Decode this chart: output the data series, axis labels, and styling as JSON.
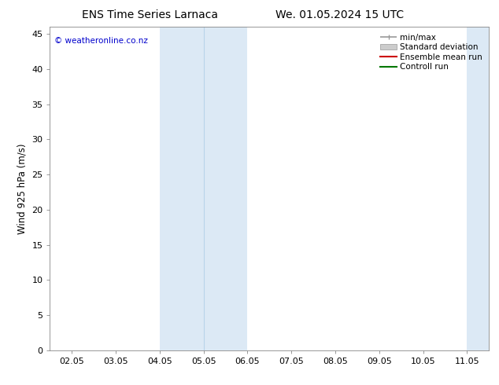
{
  "title_left": "ENS Time Series Larnaca",
  "title_right": "We. 01.05.2024 15 UTC",
  "ylabel": "Wind 925 hPa (m/s)",
  "watermark": "© weatheronline.co.nz",
  "background_color": "#ffffff",
  "plot_bg_color": "#ffffff",
  "ylim": [
    0,
    46
  ],
  "yticks": [
    0,
    5,
    10,
    15,
    20,
    25,
    30,
    35,
    40,
    45
  ],
  "xtick_labels": [
    "02.05",
    "03.05",
    "04.05",
    "05.05",
    "06.05",
    "07.05",
    "08.05",
    "09.05",
    "10.05",
    "11.05"
  ],
  "x_values": [
    0,
    1,
    2,
    3,
    4,
    5,
    6,
    7,
    8,
    9
  ],
  "xlim": [
    -0.5,
    9.5
  ],
  "shaded_regions": [
    {
      "x_start": 2.0,
      "x_end": 4.0,
      "color": "#dce9f5"
    },
    {
      "x_start": 9.0,
      "x_end": 9.5,
      "color": "#dce9f5"
    }
  ],
  "shade_divider_color": "#b8d4ea",
  "shade_dividers": [
    3.0
  ],
  "legend_items": [
    {
      "label": "min/max",
      "color": "#999999",
      "type": "minmax_line"
    },
    {
      "label": "Standard deviation",
      "color": "#cccccc",
      "type": "stddev_band"
    },
    {
      "label": "Ensemble mean run",
      "color": "#cc0000",
      "type": "line"
    },
    {
      "label": "Controll run",
      "color": "#007700",
      "type": "line"
    }
  ],
  "title_fontsize": 10,
  "legend_fontsize": 7.5,
  "axis_label_fontsize": 8.5,
  "tick_fontsize": 8,
  "watermark_color": "#0000cc",
  "watermark_fontsize": 7.5,
  "spine_color": "#888888",
  "tick_color": "#888888"
}
